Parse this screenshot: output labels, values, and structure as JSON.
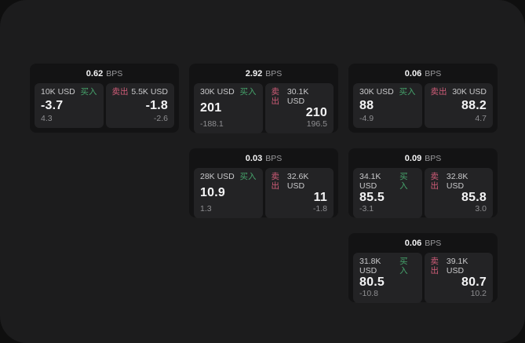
{
  "colors": {
    "outer_bg": "#0f0f0f",
    "panel_bg": "#1c1c1d",
    "card_bg": "#131314",
    "subcard_bg": "#232325",
    "text_primary": "#f4f4f5",
    "text_label": "#c9c9cb",
    "text_dim": "#8e8e91",
    "text_dim2": "#9b9b9e",
    "buy_green": "#46a46c",
    "sell_pink": "#cf5c78"
  },
  "cards": [
    {
      "bps": "0.62",
      "unit": "BPS",
      "buy": {
        "amount": "10K USD",
        "side": "买入",
        "price": "-3.7",
        "delta": "4.3"
      },
      "sell": {
        "side": "卖出",
        "amount": "5.5K USD",
        "price": "-1.8",
        "delta": "-2.6"
      }
    },
    {
      "bps": "2.92",
      "unit": "BPS",
      "buy": {
        "amount": "30K USD",
        "side": "买入",
        "price": "201",
        "delta": "-188.1"
      },
      "sell": {
        "side": "卖出",
        "amount": "30.1K USD",
        "price": "210",
        "delta": "196.5"
      }
    },
    {
      "bps": "0.06",
      "unit": "BPS",
      "buy": {
        "amount": "30K USD",
        "side": "买入",
        "price": "88",
        "delta": "-4.9"
      },
      "sell": {
        "side": "卖出",
        "amount": "30K USD",
        "price": "88.2",
        "delta": "4.7"
      }
    },
    {
      "bps": "0.03",
      "unit": "BPS",
      "buy": {
        "amount": "28K USD",
        "side": "买入",
        "price": "10.9",
        "delta": "1.3"
      },
      "sell": {
        "side": "卖出",
        "amount": "32.6K USD",
        "price": "11",
        "delta": "-1.8"
      }
    },
    {
      "bps": "0.09",
      "unit": "BPS",
      "buy": {
        "amount": "34.1K USD",
        "side": "买入",
        "price": "85.5",
        "delta": "-3.1"
      },
      "sell": {
        "side": "卖出",
        "amount": "32.8K USD",
        "price": "85.8",
        "delta": "3.0"
      }
    },
    {
      "bps": "0.06",
      "unit": "BPS",
      "buy": {
        "amount": "31.8K USD",
        "side": "买入",
        "price": "80.5",
        "delta": "-10.8"
      },
      "sell": {
        "side": "卖出",
        "amount": "39.1K USD",
        "price": "80.7",
        "delta": "10.2"
      }
    }
  ]
}
